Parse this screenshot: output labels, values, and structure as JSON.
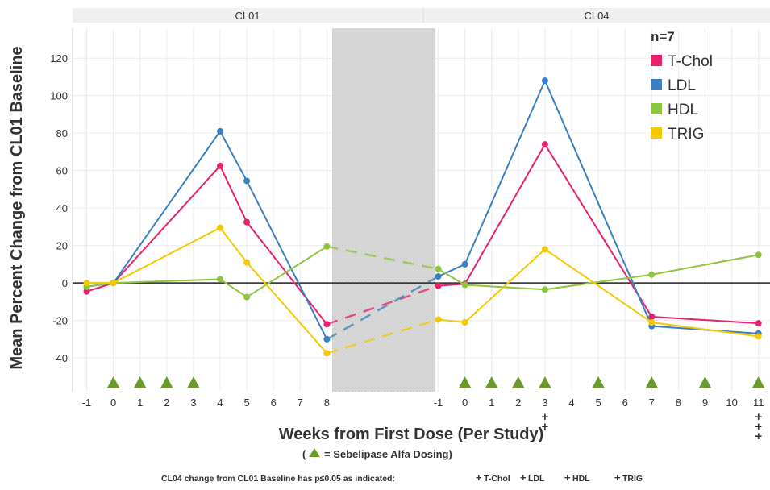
{
  "chart_data": {
    "type": "line",
    "ylabel": "Mean Percent Change from CL01 Baseline",
    "xlabel": "Weeks from First Dose (Per Study)",
    "dosing_note": {
      "open": "(",
      "text": "= Sebelipase Alfa Dosing)"
    },
    "ylim": [
      -58,
      136
    ],
    "yticks": [
      -40,
      -20,
      0,
      20,
      40,
      60,
      80,
      100,
      120
    ],
    "panels": [
      {
        "name": "CL01",
        "x_ticks": [
          -1,
          0,
          1,
          2,
          3,
          4,
          5,
          6,
          7,
          8
        ],
        "dosing_weeks": [
          0,
          1,
          2,
          3
        ]
      },
      {
        "name": "CL04",
        "x_ticks": [
          -1,
          0,
          1,
          2,
          3,
          4,
          5,
          6,
          7,
          8,
          9,
          10,
          11
        ],
        "dosing_weeks": [
          0,
          1,
          2,
          3,
          5,
          7,
          9,
          11
        ]
      }
    ],
    "series": [
      {
        "name": "T-Chol",
        "color": "#e8206e",
        "cl01": [
          [
            -1,
            -4.5
          ],
          [
            0,
            0
          ],
          [
            4,
            62.5
          ],
          [
            5,
            32.5
          ],
          [
            8,
            -22
          ]
        ],
        "cl04": [
          [
            -1,
            -1.5
          ],
          [
            0,
            -0.5
          ],
          [
            3,
            74
          ],
          [
            7,
            -18
          ],
          [
            11,
            -21.5
          ]
        ]
      },
      {
        "name": "LDL",
        "color": "#3a7fc1",
        "cl01": [
          [
            -1,
            -2
          ],
          [
            0,
            0
          ],
          [
            4,
            81
          ],
          [
            5,
            54.5
          ],
          [
            8,
            -30
          ]
        ],
        "cl04": [
          [
            -1,
            3.5
          ],
          [
            0,
            10
          ],
          [
            3,
            108
          ],
          [
            7,
            -23
          ],
          [
            11,
            -27
          ]
        ]
      },
      {
        "name": "HDL",
        "color": "#8cc63f",
        "cl01": [
          [
            -1,
            -2
          ],
          [
            0,
            0
          ],
          [
            4,
            2
          ],
          [
            5,
            -7.5
          ],
          [
            8,
            19.5
          ]
        ],
        "cl04": [
          [
            -1,
            7.5
          ],
          [
            0,
            -1
          ],
          [
            3,
            -3.5
          ],
          [
            7,
            4.5
          ],
          [
            11,
            15
          ]
        ]
      },
      {
        "name": "TRIG",
        "color": "#f5c800",
        "cl01": [
          [
            -1,
            0
          ],
          [
            0,
            0
          ],
          [
            4,
            29.5
          ],
          [
            5,
            11
          ],
          [
            8,
            -37.5
          ]
        ],
        "cl04": [
          [
            -1,
            -19.5
          ],
          [
            0,
            -21
          ],
          [
            3,
            18
          ],
          [
            7,
            -21
          ],
          [
            11,
            -28.5
          ]
        ]
      }
    ],
    "legend": {
      "title": "n=7",
      "placement": "top-right",
      "entries": [
        "T-Chol",
        "LDL",
        "HDL",
        "TRIG"
      ]
    },
    "significance": {
      "marker": "+",
      "footnote": "CL04 change from CL01 Baseline  has p≤0.05 as indicated:",
      "legend": [
        "T-Chol",
        "LDL",
        "HDL",
        "TRIG"
      ],
      "markers": [
        {
          "week": 3,
          "series": [
            "T-Chol",
            "LDL"
          ]
        },
        {
          "week": 11,
          "series": [
            "T-Chol",
            "HDL",
            "TRIG"
          ]
        }
      ]
    },
    "dosing_marker_color": "#6a9a2a"
  }
}
